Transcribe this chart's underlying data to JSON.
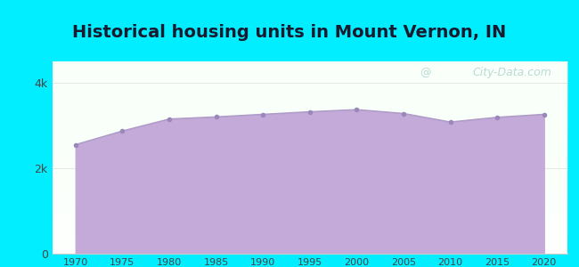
{
  "title": "Historical housing units in Mount Vernon, IN",
  "years": [
    1970,
    1975,
    1980,
    1985,
    1990,
    1995,
    2000,
    2005,
    2010,
    2015,
    2020
  ],
  "values": [
    2550,
    2870,
    3150,
    3200,
    3260,
    3320,
    3370,
    3280,
    3080,
    3190,
    3260
  ],
  "ylim": [
    0,
    4500
  ],
  "yticks": [
    0,
    2000,
    4000
  ],
  "ytick_labels": [
    "0",
    "2k",
    "4k"
  ],
  "line_color": "#b09cc8",
  "fill_color": "#c4aad8",
  "fill_alpha": 1.0,
  "marker_color": "#9b87bb",
  "marker_size": 4,
  "bg_outer": "#00eeff",
  "title_fontsize": 14,
  "title_color": "#1a1a2e",
  "tick_color": "#444444",
  "watermark_text": "City-Data.com",
  "watermark_color": "#88bbbb",
  "watermark_alpha": 0.55,
  "xlim": [
    1967.5,
    2022.5
  ]
}
